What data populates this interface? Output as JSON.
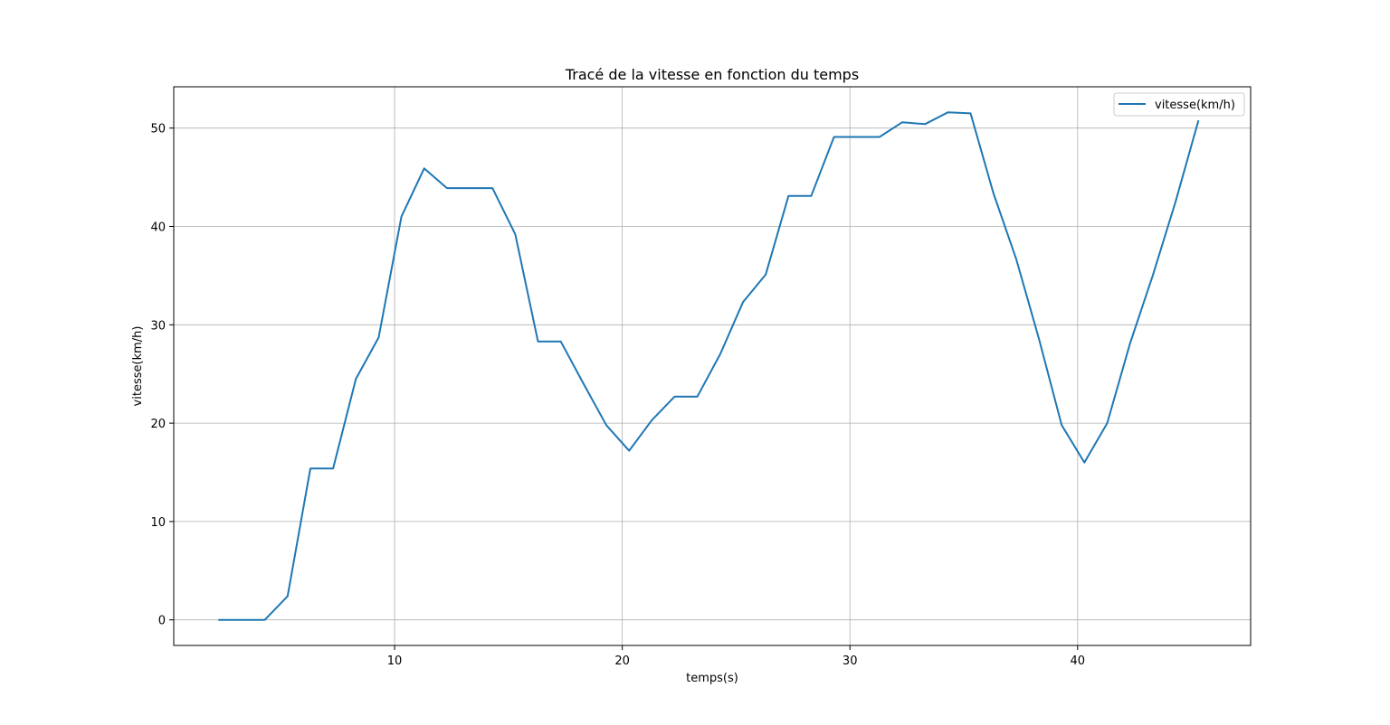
{
  "chart_data": {
    "type": "line",
    "title": "Tracé de la vitesse en fonction du temps",
    "xlabel": "temps(s)",
    "ylabel": "vitesse(km/h)",
    "xlim": [
      0.3,
      47.6
    ],
    "ylim": [
      -2.6,
      54.2
    ],
    "xticks": [
      10,
      20,
      30,
      40
    ],
    "yticks": [
      0,
      10,
      20,
      30,
      40,
      50
    ],
    "xtick_labels": [
      "10",
      "20",
      "30",
      "40"
    ],
    "ytick_labels": [
      "0",
      "10",
      "20",
      "30",
      "40",
      "50"
    ],
    "grid": true,
    "legend_position": "top-right",
    "colors": {
      "series": "#1f77b4",
      "grid": "#b0b0b0",
      "axes": "#000000"
    },
    "series": [
      {
        "name": "vitesse(km/h)",
        "x": [
          2.3,
          3.3,
          4.3,
          5.3,
          6.3,
          7.3,
          8.3,
          9.3,
          10.3,
          11.3,
          12.3,
          13.3,
          14.3,
          15.3,
          16.3,
          17.3,
          18.3,
          19.3,
          20.3,
          21.3,
          22.3,
          23.3,
          24.3,
          25.3,
          26.3,
          27.3,
          28.3,
          29.3,
          30.3,
          31.3,
          32.3,
          33.3,
          34.3,
          35.3,
          36.3,
          37.3,
          38.3,
          39.3,
          40.3,
          41.3,
          42.3,
          43.3,
          44.3,
          45.3
        ],
        "y": [
          0.0,
          0.0,
          0.0,
          2.4,
          15.4,
          15.4,
          24.5,
          28.7,
          41.0,
          45.9,
          43.9,
          43.9,
          43.9,
          39.2,
          28.3,
          28.3,
          24.0,
          19.8,
          17.2,
          20.3,
          22.7,
          22.7,
          27.0,
          32.3,
          35.1,
          43.1,
          43.1,
          49.1,
          49.1,
          49.1,
          50.6,
          50.4,
          51.6,
          51.5,
          43.4,
          36.7,
          28.6,
          19.8,
          16.0,
          20.0,
          28.1,
          35.0,
          42.5,
          50.7
        ]
      }
    ]
  }
}
